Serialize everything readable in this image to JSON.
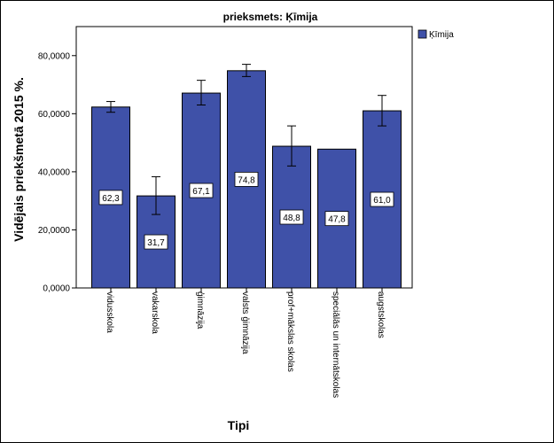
{
  "chart_data": {
    "type": "bar",
    "title": "prieksmets: Ķīmija",
    "xlabel": "Tipi",
    "ylabel": "Vidējais priekšmetā 2015 %.",
    "categories": [
      "vidusskola",
      "vakarskola",
      "ģimnāzija",
      "valsts ģimnāzija",
      "prof+mākslas skolas",
      "speciālās un internātskolas",
      "augstskolas"
    ],
    "values": [
      62.3,
      31.7,
      67.1,
      74.8,
      48.8,
      47.8,
      61.0
    ],
    "data_labels": [
      "62,3",
      "31,7",
      "67,1",
      "74,8",
      "48,8",
      "47,8",
      "61,0"
    ],
    "error_low": [
      60.5,
      25.3,
      63.0,
      72.8,
      42.0,
      null,
      55.8
    ],
    "error_high": [
      64.2,
      38.3,
      71.5,
      77.0,
      55.8,
      null,
      66.3
    ],
    "ylim": [
      0,
      90
    ],
    "yticks": [
      0,
      20,
      40,
      60,
      80
    ],
    "ytick_labels": [
      "0,0000",
      "20,0000",
      "40,0000",
      "60,0000",
      "80,0000"
    ],
    "legend": {
      "position": "top-right",
      "entries": [
        {
          "name": "Ķīmija",
          "color": "#3f51a8"
        }
      ]
    },
    "colors": {
      "bar_fill": "#3f51a8",
      "bar_stroke": "#000000"
    },
    "grid": false
  }
}
